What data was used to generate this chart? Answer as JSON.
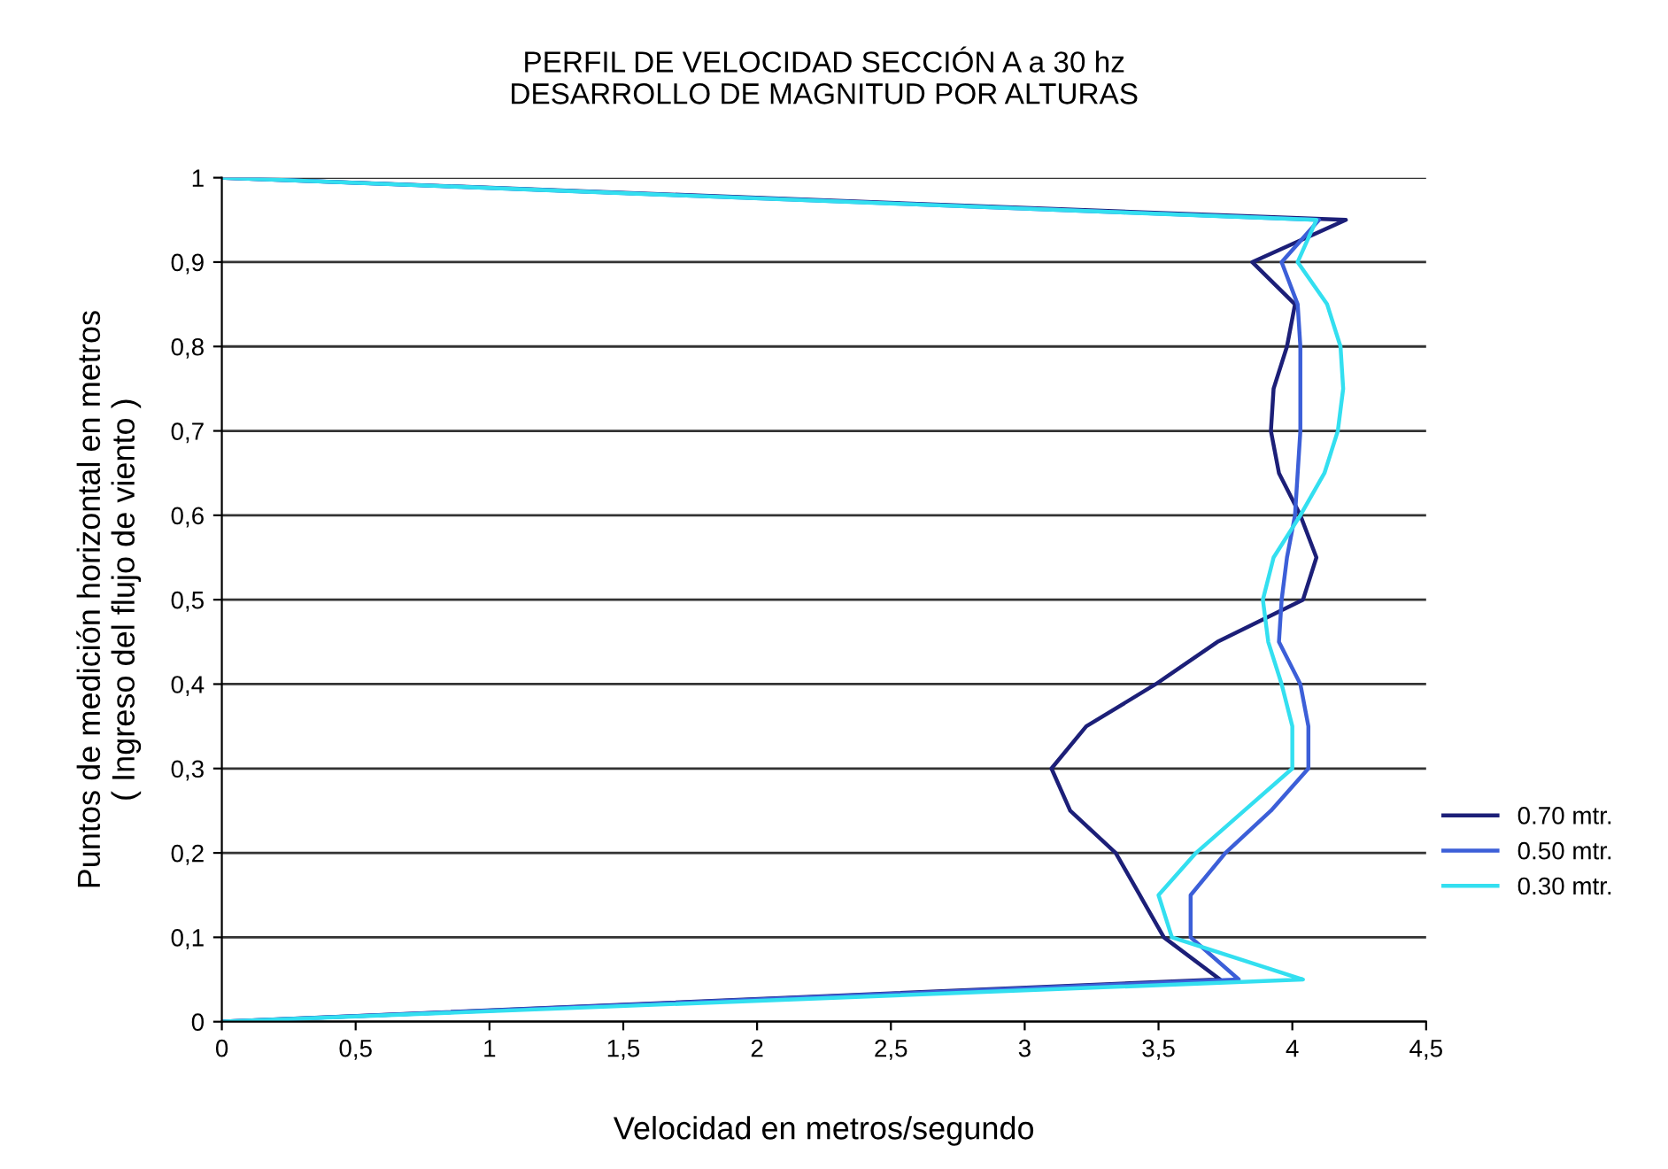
{
  "chart_data": {
    "type": "line",
    "title": "PERFIL DE VELOCIDAD SECCIÓN A a 30 hz\nDESARROLLO DE MAGNITUD POR ALTURAS",
    "xlabel": "Velocidad en metros/segundo",
    "ylabel": "Puntos de medición horizontal en metros\n( Ingreso del flujo de viento )",
    "series": [
      {
        "name": "0.70 mtr.",
        "color": "#1c1f78",
        "x": [
          0,
          3.73,
          3.52,
          3.43,
          3.34,
          3.17,
          3.1,
          3.23,
          3.49,
          3.72,
          4.04,
          4.09,
          4.03,
          3.95,
          3.92,
          3.93,
          3.98,
          4.01,
          3.85,
          4.2,
          0
        ],
        "values": [
          0,
          0.05,
          0.1,
          0.15,
          0.2,
          0.25,
          0.3,
          0.35,
          0.4,
          0.45,
          0.5,
          0.55,
          0.6,
          0.65,
          0.7,
          0.75,
          0.8,
          0.85,
          0.9,
          0.95,
          1
        ]
      },
      {
        "name": "0.50 mtr.",
        "color": "#3c5fd8",
        "x": [
          0,
          3.8,
          3.62,
          3.62,
          3.75,
          3.92,
          4.06,
          4.06,
          4.03,
          3.95,
          3.96,
          3.98,
          4.01,
          4.02,
          4.03,
          4.03,
          4.03,
          4.02,
          3.96,
          4.1,
          0
        ],
        "values": [
          0,
          0.05,
          0.1,
          0.15,
          0.2,
          0.25,
          0.3,
          0.35,
          0.4,
          0.45,
          0.5,
          0.55,
          0.6,
          0.65,
          0.7,
          0.75,
          0.8,
          0.85,
          0.9,
          0.95,
          1
        ]
      },
      {
        "name": "0.30 mtr.",
        "color": "#33dff0",
        "x": [
          0,
          4.04,
          3.55,
          3.5,
          3.64,
          3.82,
          4.0,
          4.0,
          3.96,
          3.91,
          3.89,
          3.93,
          4.03,
          4.12,
          4.17,
          4.19,
          4.18,
          4.13,
          4.02,
          4.09,
          0
        ],
        "values": [
          0,
          0.05,
          0.1,
          0.15,
          0.2,
          0.25,
          0.3,
          0.35,
          0.4,
          0.45,
          0.5,
          0.55,
          0.6,
          0.65,
          0.7,
          0.75,
          0.8,
          0.85,
          0.9,
          0.95,
          1
        ]
      }
    ],
    "xlim": [
      0,
      4.5
    ],
    "xticks": [
      0,
      {
        "value": 0.5,
        "label": "0,5"
      },
      1,
      {
        "value": 1.5,
        "label": "1,5"
      },
      2,
      {
        "value": 2.5,
        "label": "2,5"
      },
      3,
      {
        "value": 3.5,
        "label": "3,5"
      },
      4,
      {
        "value": 4.5,
        "label": "4,5"
      }
    ],
    "ylim": [
      0,
      1
    ],
    "yticks": [
      0,
      {
        "value": 0.1,
        "label": "0,1"
      },
      {
        "value": 0.2,
        "label": "0,2"
      },
      {
        "value": 0.3,
        "label": "0,3"
      },
      {
        "value": 0.4,
        "label": "0,4"
      },
      {
        "value": 0.5,
        "label": "0,5"
      },
      {
        "value": 0.6,
        "label": "0,6"
      },
      {
        "value": 0.7,
        "label": "0,7"
      },
      {
        "value": 0.8,
        "label": "0,8"
      },
      {
        "value": 0.9,
        "label": "0,9"
      },
      1
    ],
    "grid": "y",
    "legend": "right",
    "marker": "none",
    "line_style": "solid"
  }
}
